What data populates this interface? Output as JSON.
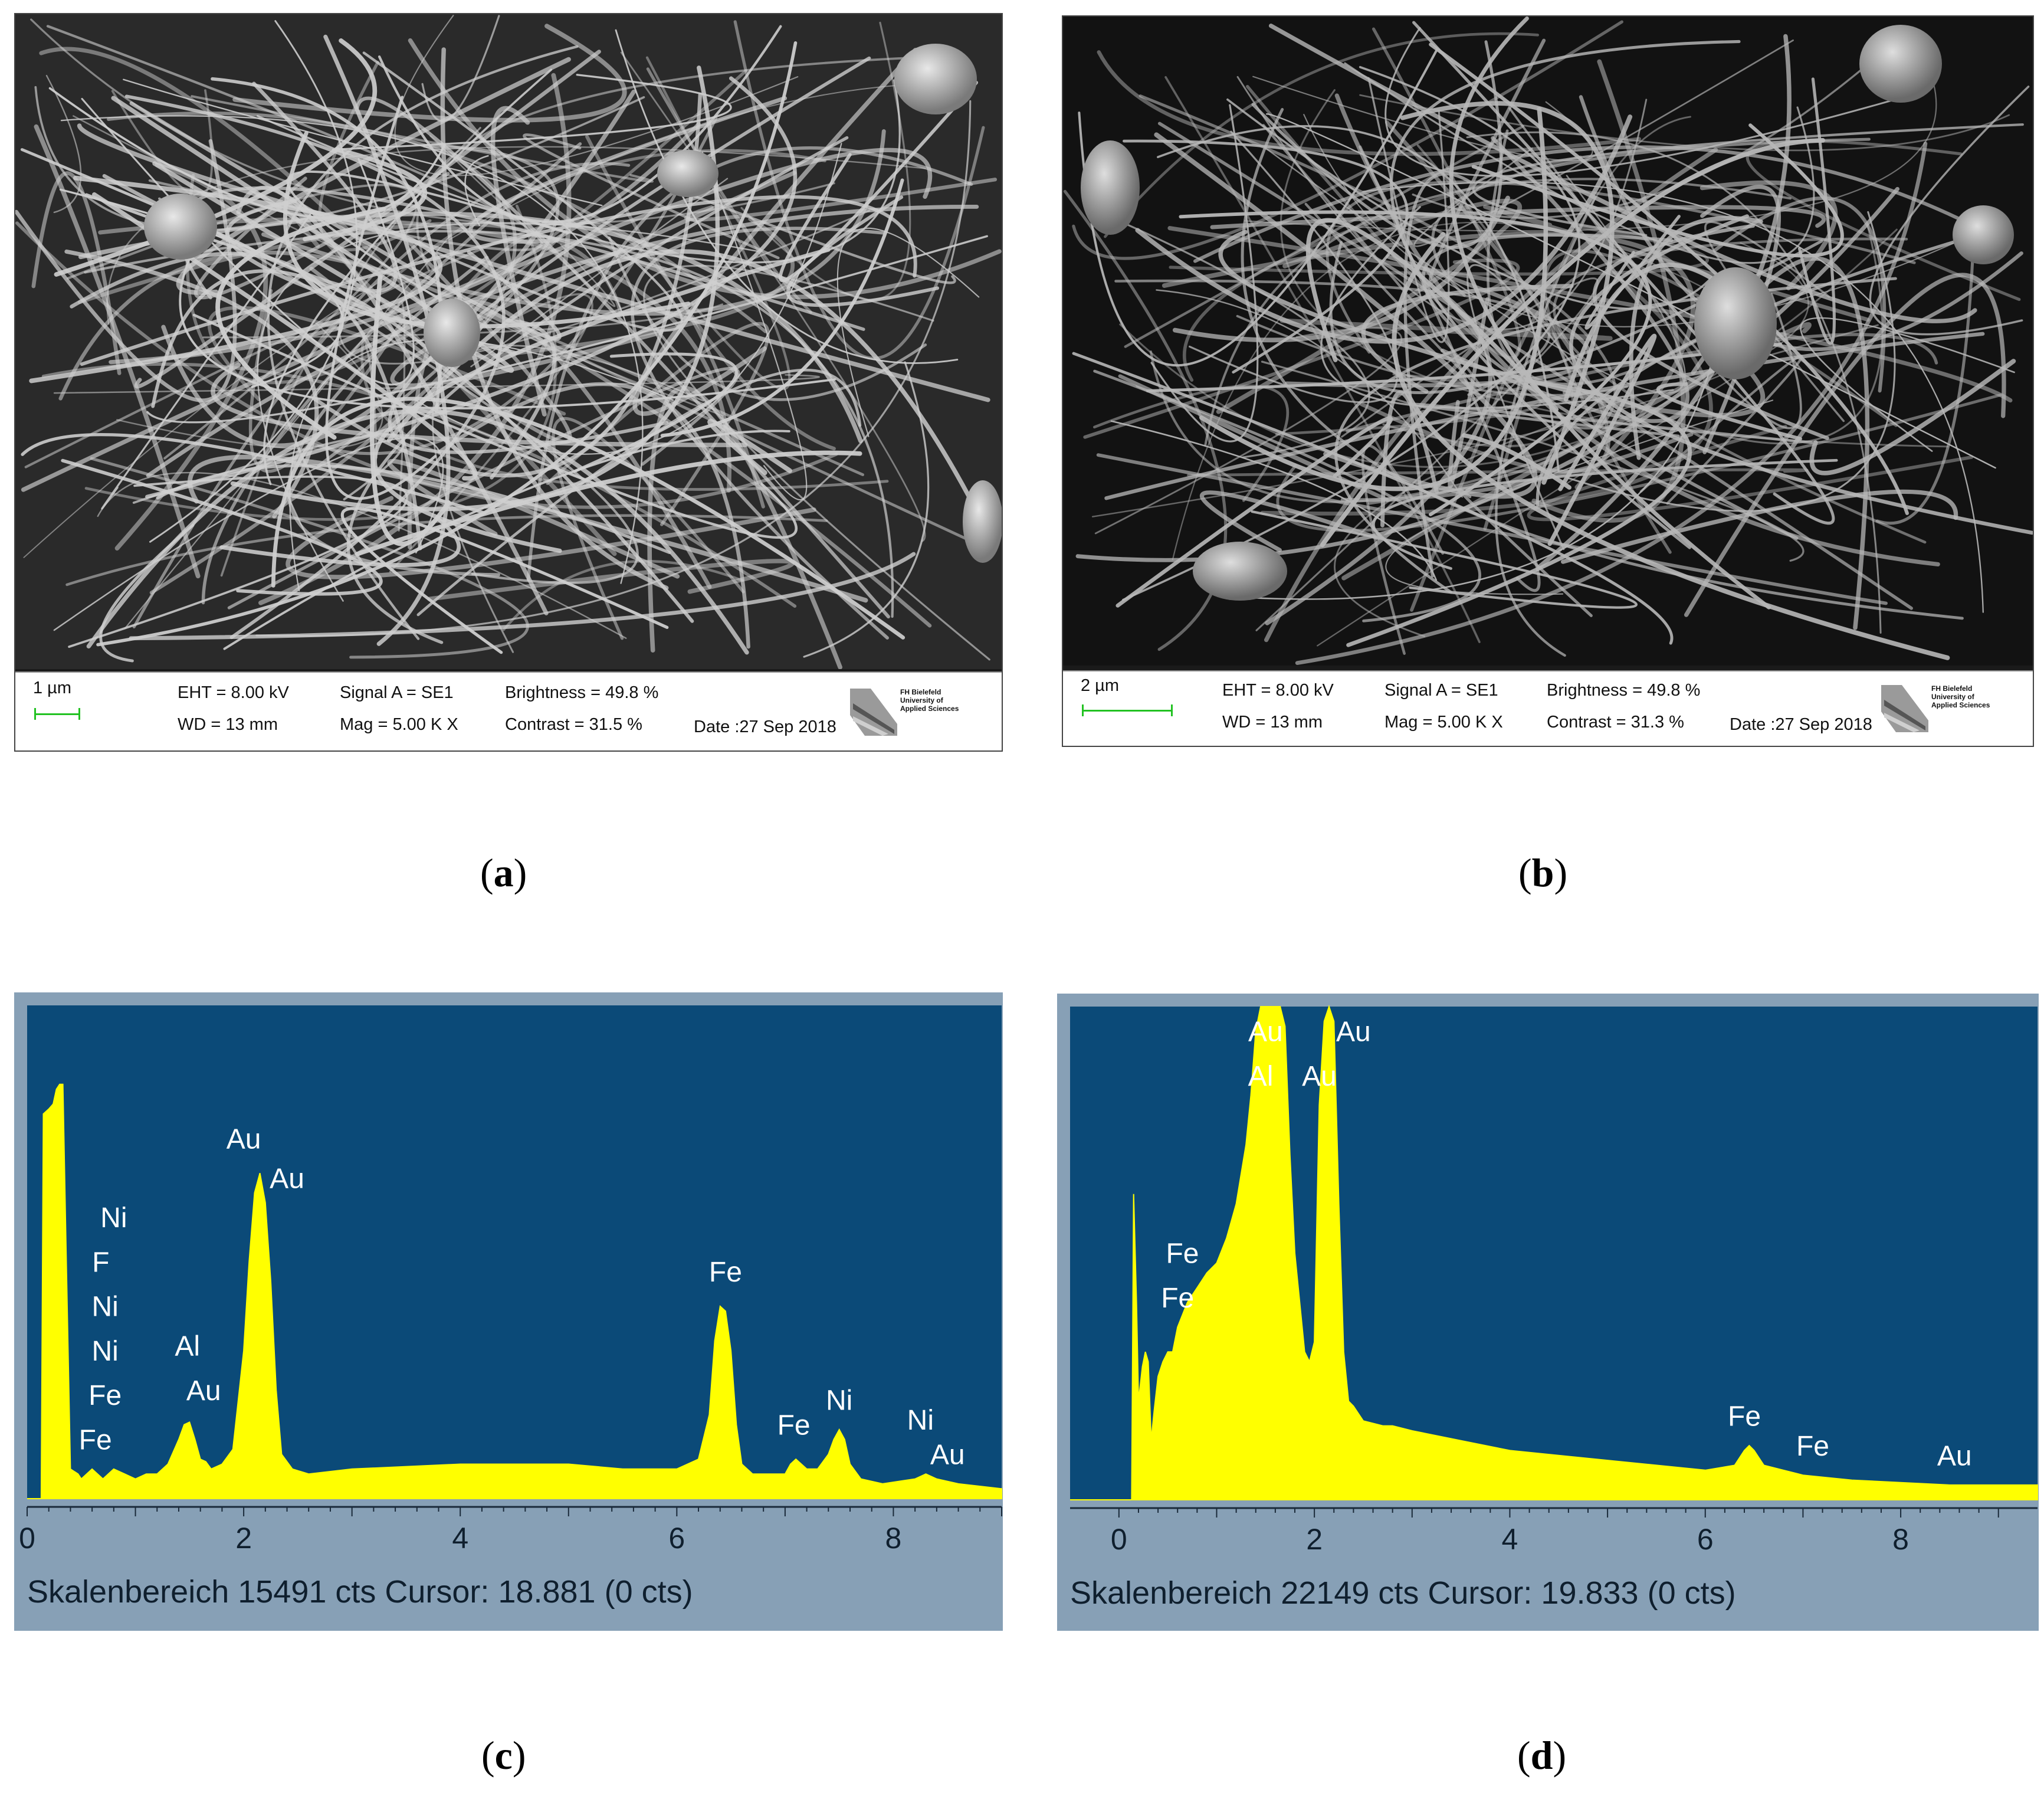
{
  "sem_a": {
    "scale_label": "1 µm",
    "eht": "EHT =  8.00 kV",
    "wd": "WD =   13 mm",
    "signal": "Signal A = SE1",
    "mag": "Mag =    5.00 K X",
    "brightness": "Brightness =  49.8 %",
    "contrast": "Contrast =  31.5 %",
    "date": "Date :27 Sep 2018",
    "logo_lines": [
      "FH Bielefeld",
      "University of",
      "Applied Sciences"
    ]
  },
  "sem_b": {
    "scale_label": "2 µm",
    "eht": "EHT =  8.00 kV",
    "wd": "WD =   13 mm",
    "signal": "Signal A = SE1",
    "mag": "Mag =   5.00 K X",
    "brightness": "Brightness =  49.8 %",
    "contrast": "Contrast =  31.3 %",
    "date": "Date :27 Sep 2018",
    "logo_lines": [
      "FH Bielefeld",
      "University of",
      "Applied Sciences"
    ]
  },
  "labels": {
    "a": "a",
    "b": "b",
    "c": "c",
    "d": "d"
  },
  "colors": {
    "eds_bg": "#0b4a78",
    "eds_fill": "#ffff00",
    "eds_frame": "#87a0b6",
    "scalebar": "#22c222"
  },
  "chart_data": [
    {
      "type": "area",
      "panel": "c",
      "xlim": [
        0,
        9
      ],
      "ticks": [
        "0",
        "2",
        "4",
        "6",
        "8"
      ],
      "status": "Skalenbereich 15491 cts Cursor: 18.881  (0 cts)",
      "ylim": [
        0,
        1
      ],
      "x": [
        0.0,
        0.13,
        0.15,
        0.2,
        0.24,
        0.27,
        0.3,
        0.33,
        0.36,
        0.4,
        0.47,
        0.5,
        0.6,
        0.7,
        0.8,
        0.9,
        1.0,
        1.1,
        1.2,
        1.3,
        1.4,
        1.45,
        1.5,
        1.55,
        1.6,
        1.65,
        1.7,
        1.8,
        1.9,
        2.0,
        2.05,
        2.1,
        2.15,
        2.2,
        2.25,
        2.3,
        2.35,
        2.45,
        2.6,
        3.0,
        4.0,
        5.0,
        5.5,
        6.0,
        6.2,
        6.3,
        6.35,
        6.4,
        6.45,
        6.5,
        6.55,
        6.6,
        6.7,
        6.8,
        7.0,
        7.05,
        7.1,
        7.2,
        7.3,
        7.4,
        7.45,
        7.5,
        7.55,
        7.6,
        7.7,
        7.9,
        8.2,
        8.3,
        8.4,
        8.6,
        9.0
      ],
      "y": [
        0.0,
        0.0,
        0.78,
        0.79,
        0.8,
        0.83,
        0.84,
        0.84,
        0.5,
        0.06,
        0.05,
        0.04,
        0.06,
        0.04,
        0.06,
        0.05,
        0.04,
        0.05,
        0.05,
        0.07,
        0.12,
        0.15,
        0.155,
        0.12,
        0.08,
        0.075,
        0.06,
        0.07,
        0.1,
        0.3,
        0.48,
        0.62,
        0.66,
        0.6,
        0.44,
        0.22,
        0.09,
        0.06,
        0.05,
        0.06,
        0.07,
        0.07,
        0.06,
        0.06,
        0.08,
        0.17,
        0.32,
        0.39,
        0.38,
        0.3,
        0.15,
        0.07,
        0.05,
        0.05,
        0.05,
        0.07,
        0.08,
        0.06,
        0.06,
        0.09,
        0.12,
        0.14,
        0.12,
        0.07,
        0.04,
        0.03,
        0.04,
        0.05,
        0.04,
        0.03,
        0.02
      ],
      "annotations": [
        {
          "text": "Au",
          "x": 2.0,
          "y": 0.71
        },
        {
          "text": "Au",
          "x": 2.4,
          "y": 0.63
        },
        {
          "text": "Ni",
          "x": 0.8,
          "y": 0.55
        },
        {
          "text": "F",
          "x": 0.68,
          "y": 0.46
        },
        {
          "text": "Ni",
          "x": 0.72,
          "y": 0.37
        },
        {
          "text": "Ni",
          "x": 0.72,
          "y": 0.28
        },
        {
          "text": "Al",
          "x": 1.48,
          "y": 0.29
        },
        {
          "text": "Fe",
          "x": 0.72,
          "y": 0.19
        },
        {
          "text": "Au",
          "x": 1.63,
          "y": 0.2
        },
        {
          "text": "Fe",
          "x": 0.63,
          "y": 0.1
        },
        {
          "text": "Fe",
          "x": 6.45,
          "y": 0.44
        },
        {
          "text": "Fe",
          "x": 7.08,
          "y": 0.13
        },
        {
          "text": "Ni",
          "x": 7.5,
          "y": 0.18
        },
        {
          "text": "Ni",
          "x": 8.25,
          "y": 0.14
        },
        {
          "text": "Au",
          "x": 8.5,
          "y": 0.07
        }
      ]
    },
    {
      "type": "area",
      "panel": "d",
      "xlim": [
        -0.5,
        9.4
      ],
      "ticks": [
        "0",
        "2",
        "4",
        "6",
        "8"
      ],
      "status": "Skalenbereich 22149 cts Cursor: 19.833  (0 cts)",
      "ylim": [
        0,
        1
      ],
      "x": [
        -0.5,
        0.13,
        0.15,
        0.18,
        0.2,
        0.24,
        0.27,
        0.3,
        0.33,
        0.36,
        0.4,
        0.45,
        0.5,
        0.55,
        0.6,
        0.7,
        0.8,
        0.9,
        1.0,
        1.1,
        1.2,
        1.3,
        1.35,
        1.4,
        1.45,
        1.5,
        1.55,
        1.6,
        1.65,
        1.7,
        1.75,
        1.8,
        1.9,
        1.95,
        2.0,
        2.05,
        2.1,
        2.15,
        2.2,
        2.25,
        2.3,
        2.35,
        2.4,
        2.5,
        2.7,
        2.8,
        3.0,
        3.5,
        4.0,
        5.0,
        6.0,
        6.3,
        6.4,
        6.45,
        6.5,
        6.6,
        6.8,
        7.0,
        7.5,
        8.0,
        8.5,
        9.0,
        9.4
      ],
      "y": [
        0.0,
        0.0,
        0.62,
        0.4,
        0.2,
        0.27,
        0.3,
        0.28,
        0.12,
        0.18,
        0.25,
        0.28,
        0.3,
        0.3,
        0.35,
        0.4,
        0.43,
        0.46,
        0.48,
        0.53,
        0.6,
        0.72,
        0.82,
        0.95,
        1.0,
        1.0,
        1.0,
        1.0,
        1.0,
        0.96,
        0.7,
        0.5,
        0.3,
        0.28,
        0.32,
        0.8,
        0.97,
        1.0,
        0.97,
        0.6,
        0.3,
        0.2,
        0.19,
        0.16,
        0.15,
        0.15,
        0.14,
        0.12,
        0.1,
        0.08,
        0.06,
        0.07,
        0.1,
        0.11,
        0.1,
        0.07,
        0.06,
        0.05,
        0.04,
        0.035,
        0.03,
        0.03,
        0.03
      ],
      "annotations": [
        {
          "text": "Au",
          "x": 1.5,
          "y": 0.93
        },
        {
          "text": "Au",
          "x": 2.4,
          "y": 0.93
        },
        {
          "text": "Al",
          "x": 1.45,
          "y": 0.84
        },
        {
          "text": "Au",
          "x": 2.05,
          "y": 0.84
        },
        {
          "text": "Fe",
          "x": 0.65,
          "y": 0.48
        },
        {
          "text": "Fe",
          "x": 0.6,
          "y": 0.39
        },
        {
          "text": "Fe",
          "x": 6.4,
          "y": 0.15
        },
        {
          "text": "Fe",
          "x": 7.1,
          "y": 0.09
        },
        {
          "text": "Au",
          "x": 8.55,
          "y": 0.07
        }
      ]
    }
  ]
}
